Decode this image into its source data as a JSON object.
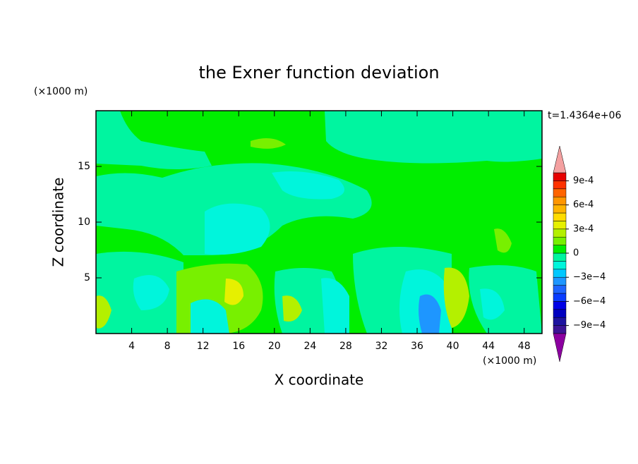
{
  "chart_data": {
    "type": "contour",
    "title": "the Exner function deviation",
    "xlabel": "X coordinate",
    "ylabel": "Z coordinate",
    "x_unit": "(×1000 m)",
    "y_unit": "(×1000 m)",
    "annotation": "t=1.4364e+06",
    "xlim": [
      0,
      50
    ],
    "xticks": [
      4,
      8,
      12,
      16,
      20,
      24,
      28,
      32,
      36,
      40,
      44,
      48
    ],
    "ylim": [
      0,
      20
    ],
    "yticks": [
      5,
      10,
      15
    ],
    "colorbar": {
      "lim": [
        -0.001,
        0.001
      ],
      "ticks": [
        {
          "value": 0.0009,
          "label": "9e-4"
        },
        {
          "value": 0.0006,
          "label": "6e-4"
        },
        {
          "value": 0.0003,
          "label": "3e-4"
        },
        0,
        {
          "value": -0.0003,
          "label": "−3e−4"
        },
        {
          "value": -0.0006,
          "label": "−6e−4"
        },
        {
          "value": -0.0009,
          "label": "−9e−4"
        }
      ],
      "colors": [
        "#3c1496",
        "#1e14a0",
        "#0000c0",
        "#0000e6",
        "#0a3cff",
        "#1e64ff",
        "#1e96ff",
        "#00c8ff",
        "#00f5dc",
        "#00f5a0",
        "#00ee00",
        "#78f000",
        "#b4f000",
        "#e6f000",
        "#ffdc00",
        "#ffb400",
        "#ff9600",
        "#ff6400",
        "#ff3200",
        "#e60000"
      ],
      "under_color": "#8c00a0",
      "over_color": "#f4a0a0"
    }
  }
}
